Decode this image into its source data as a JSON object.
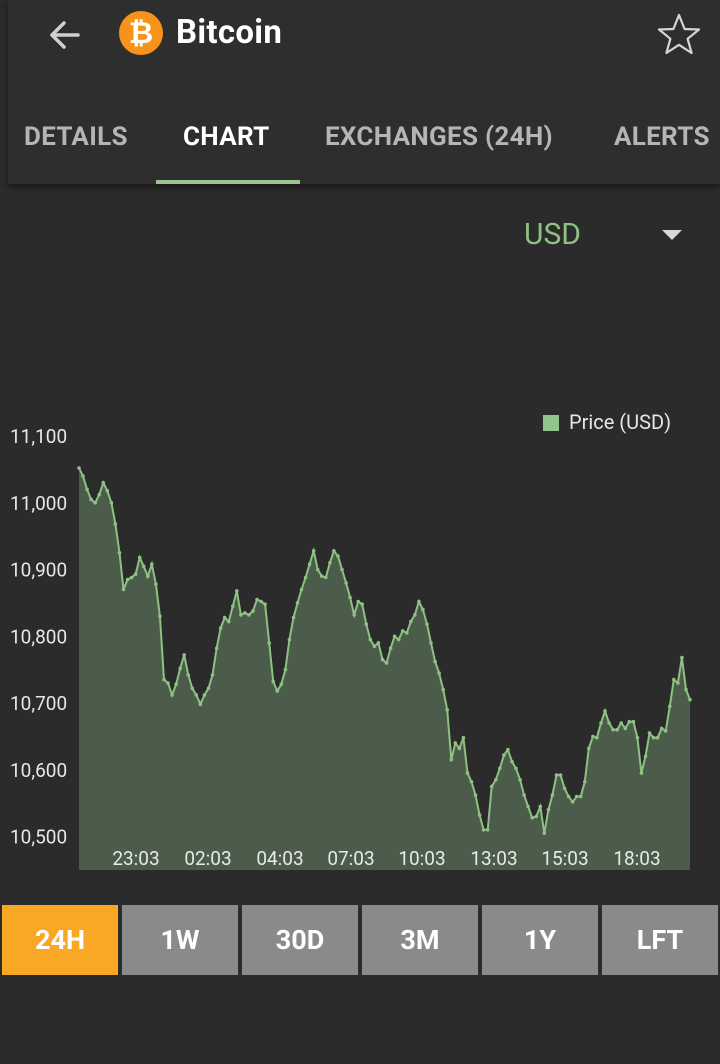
{
  "header": {
    "title": "Bitcoin",
    "coin_symbol": "₿",
    "coin_color": "#f7931a"
  },
  "tabs": [
    {
      "label": "DETAILS"
    },
    {
      "label": "CHART",
      "active": true
    },
    {
      "label": "EXCHANGES (24H)"
    },
    {
      "label": "ALERTS"
    }
  ],
  "currency": {
    "selected": "USD",
    "accent": "#8fc084"
  },
  "ranges": [
    {
      "label": "24H",
      "active": true
    },
    {
      "label": "1W"
    },
    {
      "label": "30D"
    },
    {
      "label": "3M"
    },
    {
      "label": "1Y"
    },
    {
      "label": "LFT"
    }
  ],
  "colors": {
    "background": "#2b2b2b",
    "line": "#8fc084",
    "fill": "#4b5c4b",
    "range_active": "#f9a825",
    "range_inactive": "#8a8a8a"
  },
  "chart_data": {
    "type": "area",
    "legend": "Price (USD)",
    "legend_position": "top-right",
    "ylim": [
      10470,
      11110
    ],
    "yticks": [
      10500,
      10600,
      10700,
      10800,
      10900,
      11000,
      11100
    ],
    "ytick_labels": [
      "10,500",
      "10,600",
      "10,700",
      "10,800",
      "10,900",
      "11,000",
      "11,100"
    ],
    "xtick_labels": [
      "23:03",
      "02:03",
      "04:03",
      "07:03",
      "10:03",
      "13:03",
      "15:03",
      "18:03"
    ],
    "series": [
      {
        "name": "Price (USD)",
        "values": [
          11052,
          11040,
          11020,
          11005,
          11000,
          11012,
          11030,
          11018,
          11000,
          10968,
          10925,
          10870,
          10885,
          10888,
          10893,
          10918,
          10905,
          10890,
          10908,
          10878,
          10830,
          10735,
          10730,
          10712,
          10728,
          10752,
          10772,
          10742,
          10722,
          10712,
          10698,
          10712,
          10722,
          10742,
          10782,
          10812,
          10828,
          10822,
          10845,
          10868,
          10832,
          10835,
          10832,
          10838,
          10855,
          10852,
          10848,
          10790,
          10732,
          10718,
          10728,
          10750,
          10795,
          10828,
          10850,
          10870,
          10888,
          10908,
          10928,
          10900,
          10890,
          10888,
          10910,
          10928,
          10920,
          10900,
          10880,
          10858,
          10832,
          10852,
          10848,
          10818,
          10795,
          10785,
          10790,
          10765,
          10760,
          10782,
          10800,
          10795,
          10808,
          10805,
          10822,
          10832,
          10852,
          10840,
          10818,
          10790,
          10762,
          10745,
          10720,
          10690,
          10615,
          10640,
          10632,
          10648,
          10595,
          10582,
          10562,
          10532,
          10510,
          10510,
          10575,
          10585,
          10602,
          10622,
          10630,
          10612,
          10602,
          10585,
          10562,
          10545,
          10528,
          10530,
          10545,
          10505,
          10540,
          10562,
          10592,
          10592,
          10572,
          10560,
          10552,
          10560,
          10560,
          10582,
          10632,
          10650,
          10648,
          10670,
          10688,
          10670,
          10660,
          10660,
          10670,
          10662,
          10672,
          10672,
          10648,
          10595,
          10620,
          10655,
          10648,
          10648,
          10662,
          10658,
          10695,
          10735,
          10730,
          10768,
          10720,
          10705
        ]
      }
    ]
  }
}
